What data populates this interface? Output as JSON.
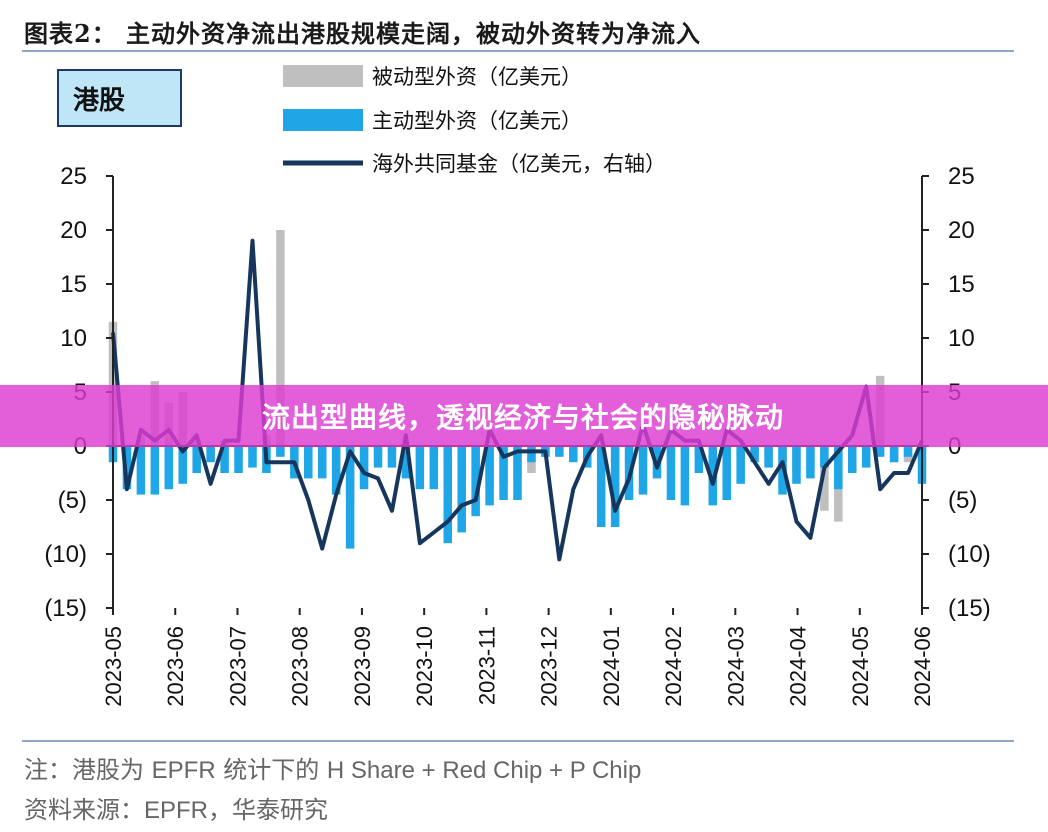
{
  "header": {
    "title": "图表2：  主动外资净流出港股规模走阔，被动外资转为净流入",
    "market_label": "港股"
  },
  "footer": {
    "note_prefix": "注：港股为 ",
    "note_latin": "EPFR",
    "note_mid": " 统计下的 ",
    "note_latin2": "H Share + Red Chip + P Chip",
    "source_prefix": "资料来源：",
    "source_latin": "EPFR",
    "source_suffix": "，华泰研究"
  },
  "banner": {
    "text": "流出型曲线，透视经济与社会的隐秘脉动"
  },
  "colors": {
    "passive": "#bfbfbf",
    "active": "#1ea6e6",
    "fund": "#17365d",
    "axis": "#222222"
  },
  "chart_data": {
    "type": "bar",
    "legend": [
      {
        "key": "passive",
        "label": "被动型外资（亿美元）"
      },
      {
        "key": "active",
        "label": "主动型外资（亿美元）"
      },
      {
        "key": "fund",
        "label": "海外共同基金（亿美元，右轴）"
      }
    ],
    "y_left": {
      "min": -15,
      "max": 25,
      "ticks": [
        "(15)",
        "(10)",
        "(5)",
        "0",
        "5",
        "10",
        "15",
        "20",
        "25"
      ]
    },
    "y_right": {
      "min": -15,
      "max": 25,
      "ticks": [
        "(15)",
        "(10)",
        "(5)",
        "0",
        "5",
        "10",
        "15",
        "20",
        "25"
      ]
    },
    "x_labels": [
      "2023-05",
      "2023-06",
      "2023-07",
      "2023-08",
      "2023-09",
      "2023-10",
      "2023-11",
      "2023-12",
      "2024-01",
      "2024-02",
      "2024-03",
      "2024-04",
      "2024-05",
      "2024-06"
    ],
    "weeks_count": 59,
    "passive": [
      11.5,
      -1.0,
      1.0,
      6.0,
      4.0,
      5.0,
      0.5,
      -0.5,
      0.5,
      -1.0,
      -0.5,
      1.0,
      20.0,
      -0.5,
      -0.5,
      -1.0,
      -4.0,
      -5.0,
      -3.0,
      -1.0,
      -0.5,
      -0.5,
      -1.0,
      -1.0,
      -1.5,
      -4.5,
      -3.5,
      -4.0,
      -3.5,
      -3.0,
      -2.5,
      -1.0,
      -0.5,
      -0.5,
      -1.0,
      -1.0,
      -1.5,
      -2.0,
      -1.0,
      -0.5,
      -1.0,
      -0.5,
      -1.0,
      -1.0,
      -0.5,
      -1.0,
      -1.0,
      -1.0,
      -1.5,
      -2.5,
      -2.0,
      -6.0,
      -7.0,
      -1.5,
      -0.5,
      6.5,
      -1.5,
      -1.5,
      -0.5
    ],
    "active": [
      -1.5,
      -4.0,
      -4.5,
      -4.5,
      -4.0,
      -3.5,
      -2.5,
      -1.5,
      -2.5,
      -2.5,
      -2.0,
      -2.5,
      -1.0,
      -3.0,
      -3.0,
      -3.0,
      -4.5,
      -9.5,
      -4.0,
      -2.0,
      -2.0,
      -3.0,
      -4.0,
      -4.0,
      -9.0,
      -8.0,
      -6.5,
      -5.5,
      -5.0,
      -5.0,
      -1.5,
      -1.0,
      -1.0,
      -1.5,
      -2.0,
      -7.5,
      -7.5,
      -5.0,
      -4.5,
      -3.0,
      -5.0,
      -5.5,
      -2.5,
      -5.5,
      -5.0,
      -3.5,
      -1.5,
      -2.0,
      -4.5,
      -3.5,
      -3.0,
      -2.0,
      -4.0,
      -2.5,
      -2.0,
      -1.0,
      -1.5,
      -1.0,
      -3.5
    ],
    "fund": [
      10.5,
      -4.0,
      1.5,
      0.5,
      1.5,
      -0.5,
      1.0,
      -3.5,
      0.5,
      0.5,
      19.0,
      -1.5,
      -1.5,
      -1.5,
      -5.0,
      -9.5,
      -4.5,
      -0.5,
      -2.5,
      -3.0,
      -6.0,
      1.0,
      -9.0,
      -8.0,
      -7.0,
      -5.5,
      -5.0,
      1.5,
      -1.0,
      -0.5,
      -0.5,
      -0.5,
      -10.5,
      -4.0,
      -1.0,
      1.0,
      -6.0,
      -3.0,
      2.0,
      -2.0,
      1.5,
      0.5,
      0.5,
      -3.5,
      1.5,
      0.5,
      -1.5,
      -3.5,
      -1.5,
      -7.0,
      -8.5,
      -2.0,
      -0.5,
      1.0,
      5.5,
      -4.0,
      -2.5,
      -2.5,
      0.5
    ]
  }
}
